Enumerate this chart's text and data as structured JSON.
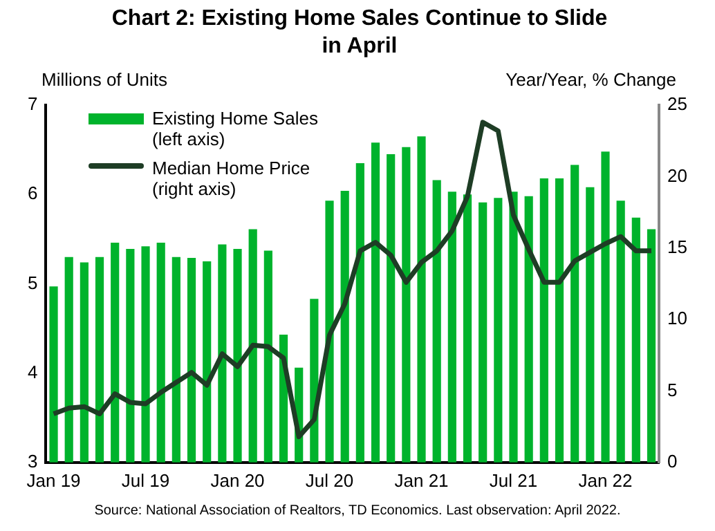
{
  "chart_data": {
    "type": "bar",
    "title": "Chart 2: Existing Home Sales Continue to Slide in April",
    "ylabel": "Millions of Units",
    "y2label": "Year/Year, % Change",
    "categories": [
      "Jan 19",
      null,
      null,
      null,
      null,
      null,
      "Jul 19",
      null,
      null,
      null,
      null,
      null,
      "Jan 20",
      null,
      null,
      null,
      null,
      null,
      "Jul 20",
      null,
      null,
      null,
      null,
      null,
      "Jan 21",
      null,
      null,
      null,
      null,
      null,
      "Jul 21",
      null,
      null,
      null,
      null,
      null,
      "Jan 22",
      null,
      null,
      null
    ],
    "series": [
      {
        "name": "Existing Home Sales (left axis)",
        "color": "#00b32c",
        "values": [
          4.97,
          5.3,
          5.24,
          5.3,
          5.46,
          5.39,
          5.42,
          5.46,
          5.3,
          5.29,
          5.25,
          5.44,
          5.39,
          5.61,
          5.37,
          4.43,
          4.06,
          4.83,
          5.93,
          6.04,
          6.35,
          6.58,
          6.45,
          6.53,
          6.65,
          6.16,
          6.03,
          6.0,
          5.91,
          5.96,
          6.03,
          5.98,
          6.18,
          6.18,
          6.33,
          6.08,
          6.48,
          5.93,
          5.74,
          5.61
        ]
      },
      {
        "name": "Median Home Price (right axis)",
        "type": "line",
        "axis": "y2",
        "color": "#1e3d25",
        "values": [
          3.4,
          3.8,
          3.9,
          3.4,
          4.8,
          4.2,
          4.1,
          4.9,
          5.6,
          6.3,
          5.4,
          7.6,
          6.7,
          8.2,
          8.1,
          7.3,
          1.8,
          3.0,
          8.9,
          11.1,
          14.8,
          15.4,
          14.5,
          12.6,
          14.0,
          14.8,
          16.2,
          18.6,
          23.8,
          23.2,
          17.3,
          14.9,
          12.6,
          12.6,
          14.1,
          14.7,
          15.3,
          15.8,
          14.8,
          14.8
        ]
      }
    ],
    "ylim": [
      3,
      7
    ],
    "yticks": [
      3,
      4,
      5,
      6,
      7
    ],
    "y2lim": [
      0,
      25
    ],
    "y2ticks": [
      0,
      5,
      10,
      15,
      20,
      25
    ],
    "grid": false,
    "legend": "top left",
    "marker": "none",
    "line_style": "solid",
    "annotations": [
      "Source: National Association of Realtors, TD Economics.  Last observation: April 2022."
    ]
  }
}
